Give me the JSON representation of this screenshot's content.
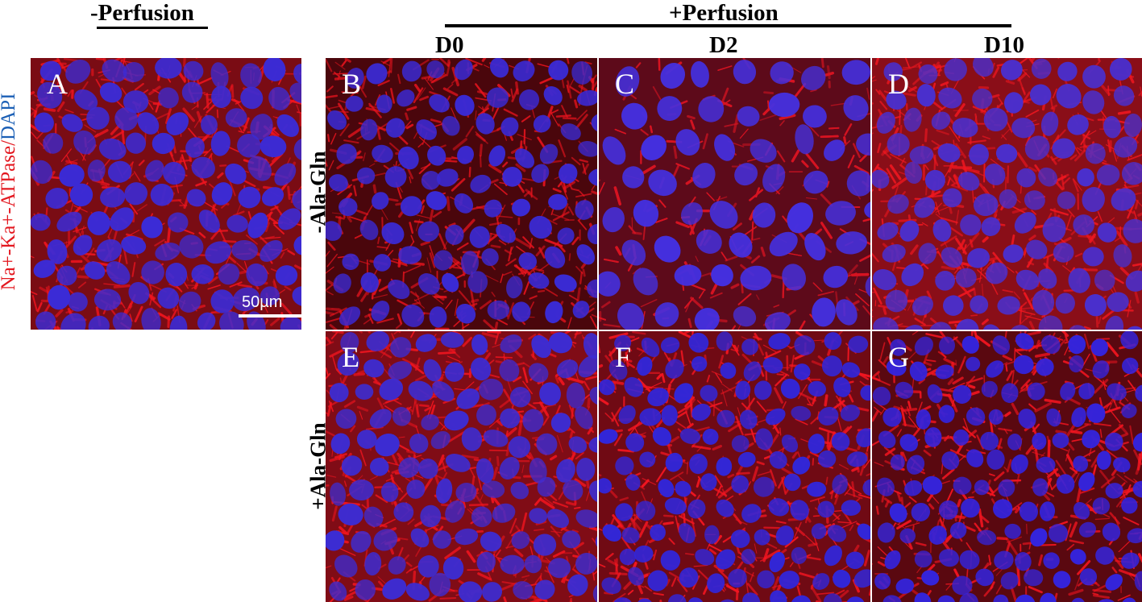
{
  "headers": {
    "minus_perfusion": "-Perfusion",
    "plus_perfusion": "+Perfusion",
    "d0": "D0",
    "d2": "D2",
    "d10": "D10"
  },
  "row_labels": {
    "minus_ala_gln": "-Ala-Gln",
    "plus_ala_gln": "+Ala-Gln"
  },
  "stain_label": {
    "part1": "Na+-Ka+-ATPase",
    "separator": "/",
    "part2": "DAPI"
  },
  "panels": {
    "A": "A",
    "B": "B",
    "C": "C",
    "D": "D",
    "E": "E",
    "F": "F",
    "G": "G"
  },
  "scale_bar": {
    "text": "50µm"
  },
  "colors": {
    "membrane_red": "#e8121e",
    "nucleus_blue": "#3a2ad8",
    "background_dark": "#5a0a10",
    "stain_blue": "#1b5fb5",
    "stain_red": "#e3171f"
  }
}
